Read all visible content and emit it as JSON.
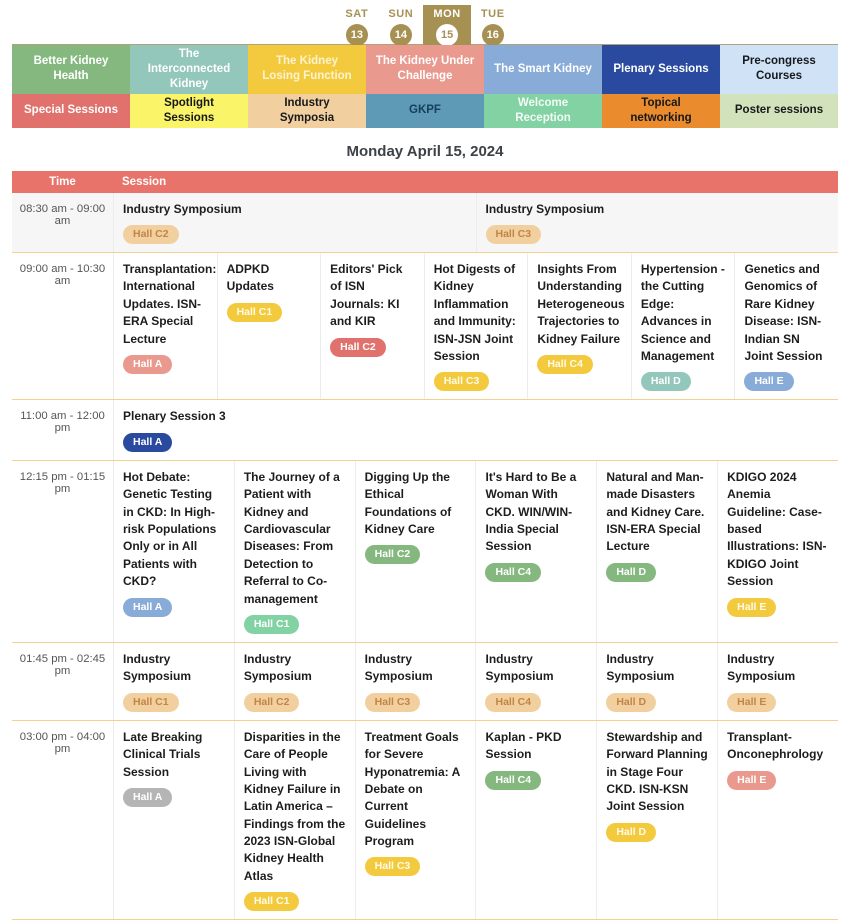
{
  "date_picker": {
    "days": [
      {
        "label": "SAT",
        "number": "13",
        "selected": false
      },
      {
        "label": "SUN",
        "number": "14",
        "selected": false
      },
      {
        "label": "MON",
        "number": "15",
        "selected": true
      },
      {
        "label": "TUE",
        "number": "16",
        "selected": false
      }
    ],
    "accent_color": "#a69152"
  },
  "filters": {
    "row1": [
      {
        "label": "Better Kidney Health",
        "bg": "#84b87e",
        "fg": "#ffffff"
      },
      {
        "label": "The Interconnected Kidney",
        "bg": "#94c7bc",
        "fg": "#ffffff"
      },
      {
        "label": "The Kidney Losing Function",
        "bg": "#f3ca3e",
        "fg": "#fdf3cf"
      },
      {
        "label": "The Kidney Under Challenge",
        "bg": "#e9998d",
        "fg": "#ffffff"
      },
      {
        "label": "The Smart Kidney",
        "bg": "#88abd8",
        "fg": "#ffffff"
      },
      {
        "label": "Plenary Sessions",
        "bg": "#2a4a9f",
        "fg": "#ffffff"
      },
      {
        "label": "Pre-congress Courses",
        "bg": "#cfe2f6",
        "fg": "#16181b"
      }
    ],
    "row2": [
      {
        "label": "Special Sessions",
        "bg": "#e0716c",
        "fg": "#ffffff"
      },
      {
        "label": "Spotlight Sessions",
        "bg": "#f9f468",
        "fg": "#16181b"
      },
      {
        "label": "Industry Symposia",
        "bg": "#f2cf9f",
        "fg": "#16181b"
      },
      {
        "label": "GKPF",
        "bg": "#5e9ab5",
        "fg": "#15405c"
      },
      {
        "label": "Welcome Reception",
        "bg": "#82d2a4",
        "fg": "#f2fbf5"
      },
      {
        "label": "Topical networking",
        "bg": "#ea8c2e",
        "fg": "#16181b"
      },
      {
        "label": "Poster sessions",
        "bg": "#d2e2ba",
        "fg": "#16181b"
      }
    ]
  },
  "page_title": "Monday April 15, 2024",
  "badge_colors": {
    "tan": {
      "bg": "#f2cf9f",
      "fg": "#c08645"
    },
    "salmon": {
      "bg": "#e9998d",
      "fg": "#ffffff"
    },
    "yellow": {
      "bg": "#f3ca3e",
      "fg": "#fffbe8"
    },
    "red": {
      "bg": "#e0716c",
      "fg": "#ffffff"
    },
    "teal": {
      "bg": "#94c7bc",
      "fg": "#ffffff"
    },
    "blue": {
      "bg": "#88abd8",
      "fg": "#ffffff"
    },
    "navy": {
      "bg": "#2a4a9f",
      "fg": "#ffffff"
    },
    "mint": {
      "bg": "#82d2a4",
      "fg": "#ffffff"
    },
    "green": {
      "bg": "#84b87e",
      "fg": "#ffffff"
    },
    "gray": {
      "bg": "#b5b5b5",
      "fg": "#ffffff"
    }
  },
  "table": {
    "headers": {
      "time": "Time",
      "session": "Session"
    },
    "rows": [
      {
        "time": "08:30 am - 09:00 am",
        "shaded": true,
        "sessions": [
          {
            "title": "Industry Symposium",
            "hall": "Hall C2",
            "badge": "tan"
          },
          {
            "title": "Industry Symposium",
            "hall": "Hall C3",
            "badge": "tan"
          }
        ]
      },
      {
        "time": "09:00 am - 10:30 am",
        "shaded": false,
        "sessions": [
          {
            "title": "Transplantation: International Updates. ISN-ERA Special Lecture",
            "hall": "Hall A",
            "badge": "salmon"
          },
          {
            "title": "ADPKD Updates",
            "hall": "Hall C1",
            "badge": "yellow"
          },
          {
            "title": "Editors' Pick of ISN Journals: KI and KIR",
            "hall": "Hall C2",
            "badge": "red"
          },
          {
            "title": "Hot Digests of Kidney Inflammation and Immunity: ISN-JSN Joint Session",
            "hall": "Hall C3",
            "badge": "yellow"
          },
          {
            "title": "Insights From Understanding Heterogeneous Trajectories to Kidney Failure",
            "hall": "Hall C4",
            "badge": "yellow"
          },
          {
            "title": "Hypertension - the Cutting Edge: Advances in Science and Management",
            "hall": "Hall D",
            "badge": "teal"
          },
          {
            "title": "Genetics and Genomics of Rare Kidney Disease: ISN-Indian SN Joint Session",
            "hall": "Hall E",
            "badge": "blue"
          }
        ]
      },
      {
        "time": "11:00 am - 12:00 pm",
        "shaded": false,
        "sessions": [
          {
            "title": "Plenary Session 3",
            "hall": "Hall A",
            "badge": "navy"
          }
        ]
      },
      {
        "time": "12:15 pm - 01:15 pm",
        "shaded": false,
        "sessions": [
          {
            "title": "Hot Debate: Genetic Testing in CKD: In High-risk Populations Only or in All Patients with CKD?",
            "hall": "Hall A",
            "badge": "blue"
          },
          {
            "title": "The Journey of a Patient with Kidney and Cardiovascular Diseases: From Detection to Referral to Co-management",
            "hall": "Hall C1",
            "badge": "mint"
          },
          {
            "title": "Digging Up the Ethical Foundations of Kidney Care",
            "hall": "Hall C2",
            "badge": "green"
          },
          {
            "title": "It's Hard to Be a Woman With CKD. WIN/WIN-India Special Session",
            "hall": "Hall C4",
            "badge": "green"
          },
          {
            "title": "Natural and Man-made Disasters and Kidney Care. ISN-ERA Special Lecture",
            "hall": "Hall D",
            "badge": "green"
          },
          {
            "title": "KDIGO 2024 Anemia Guideline: Case-based Illustrations: ISN-KDIGO Joint Session",
            "hall": "Hall E",
            "badge": "yellow"
          }
        ]
      },
      {
        "time": "01:45 pm - 02:45 pm",
        "shaded": false,
        "sessions": [
          {
            "title": "Industry Symposium",
            "hall": "Hall C1",
            "badge": "tan"
          },
          {
            "title": "Industry Symposium",
            "hall": "Hall C2",
            "badge": "tan"
          },
          {
            "title": "Industry Symposium",
            "hall": "Hall C3",
            "badge": "tan"
          },
          {
            "title": "Industry Symposium",
            "hall": "Hall C4",
            "badge": "tan"
          },
          {
            "title": "Industry Symposium",
            "hall": "Hall D",
            "badge": "tan"
          },
          {
            "title": "Industry Symposium",
            "hall": "Hall E",
            "badge": "tan"
          }
        ]
      },
      {
        "time": "03:00 pm - 04:00 pm",
        "shaded": false,
        "sessions": [
          {
            "title": "Late Breaking Clinical Trials Session",
            "hall": "Hall A",
            "badge": "gray"
          },
          {
            "title": "Disparities in the Care of People Living with Kidney Failure in Latin America – Findings from the 2023 ISN-Global Kidney Health Atlas",
            "hall": "Hall C1",
            "badge": "yellow"
          },
          {
            "title": "Treatment Goals for Severe Hyponatremia: A Debate on Current Guidelines Program",
            "hall": "Hall C3",
            "badge": "yellow"
          },
          {
            "title": "Kaplan - PKD Session",
            "hall": "Hall C4",
            "badge": "green"
          },
          {
            "title": "Stewardship and Forward Planning in Stage Four CKD. ISN-KSN Joint Session",
            "hall": "Hall D",
            "badge": "yellow"
          },
          {
            "title": "Transplant-Onconephrology",
            "hall": "Hall E",
            "badge": "salmon"
          }
        ]
      }
    ]
  }
}
